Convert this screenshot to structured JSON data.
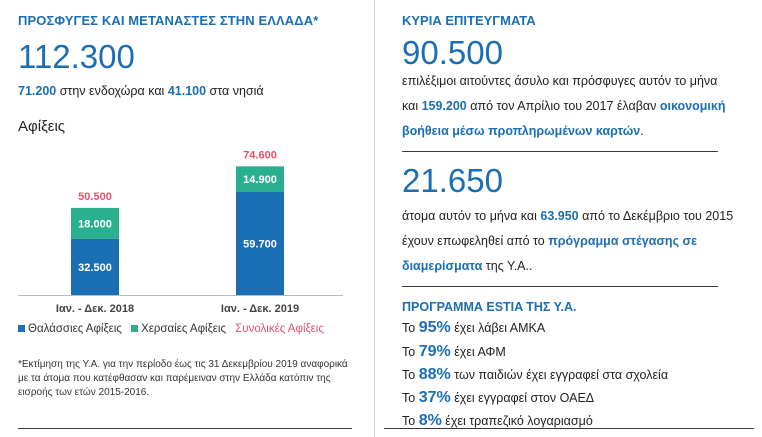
{
  "left": {
    "title": "ΠΡΟΣΦΥΓΕΣ ΚΑΙ ΜΕΤΑΝΑΣΤΕΣ ΣΤΗΝ ΕΛΛΑΔΑ*",
    "total": "112.300",
    "mainland": "71.200",
    "mainland_text": " στην ενδοχώρα και ",
    "islands": "41.100",
    "islands_text": " στα νησιά",
    "arrivals_label": "Αφίξεις",
    "footnote": "*Εκτίμηση της Υ.Α. για την περίοδο έως τις 31 Δεκεμβρίου 2019 αναφορικά με τα άτομα που κατέφθασαν και παρέμειναν στην Ελλάδα κατόπιν της εισροής των ετών 2015-2016."
  },
  "chart_data": {
    "type": "bar",
    "stacked": true,
    "categories": [
      "Ιαν. - Δεκ. 2018",
      "Ιαν. - Δεκ. 2019"
    ],
    "series": [
      {
        "name": "Θαλάσσιες Αφίξεις",
        "color": "#1a6fb4",
        "values": [
          32500,
          59700
        ],
        "labels": [
          "32.500",
          "59.700"
        ]
      },
      {
        "name": "Χερσαίες Αφίξεις",
        "color": "#2bb08f",
        "values": [
          18000,
          14900
        ],
        "labels": [
          "18.000",
          "14.900"
        ]
      }
    ],
    "totals": {
      "name": "Συνολικές Αφίξεις",
      "color": "#e8506a",
      "values": [
        50500,
        74600
      ],
      "labels": [
        "50.500",
        "74.600"
      ]
    },
    "ylim": [
      0,
      80000
    ],
    "grid": false,
    "legend": "bottom"
  },
  "right": {
    "title": "ΚΥΡΙΑ ΕΠΙΤΕΥΓΜΑΤΑ",
    "big1": "90.500",
    "p1_line1": "επιλέξιμοι αιτούντες άσυλο και πρόσφυγες αυτόν το μήνα",
    "p1_line2_a": "και ",
    "p1_line2_num": "159.200",
    "p1_line2_b": " από τον Απρίλιο του 2017 έλαβαν ",
    "p1_line2_link": "οικονομική",
    "p1_line3_link": "βοήθεια μέσω προπληρωμένων καρτών",
    "p1_line3_end": ".",
    "big2": "21.650",
    "p2_line1_a": "άτομα αυτόν το μήνα και ",
    "p2_line1_num": "63.950",
    "p2_line1_b": " από το Δεκέμβριο του 2015",
    "p2_line2_a": "έχουν επωφεληθεί από το ",
    "p2_line2_link": "πρόγραμμα στέγασης σε",
    "p2_line3_link": "διαμερίσματα",
    "p2_line3_end": " της Υ.Α..",
    "estia_title": "ΠΡΟΓΡΑΜΜΑ ESTIA ΤΗΣ Υ.Α.",
    "estia": [
      {
        "pre": "Το ",
        "pct": "95%",
        "text": " έχει λάβει ΑΜΚΑ"
      },
      {
        "pre": "Το ",
        "pct": "79%",
        "text": " έχει ΑΦΜ"
      },
      {
        "pre": "Το ",
        "pct": "88%",
        "text": " των παιδιών έχει εγγραφεί στα σχολεία"
      },
      {
        "pre": "Το ",
        "pct": "37%",
        "text": " έχει εγγραφεί στον ΟΑΕΔ"
      },
      {
        "pre": "Το ",
        "pct": "8%",
        "text": " έχει τραπεζικό λογαριασμό"
      }
    ]
  }
}
